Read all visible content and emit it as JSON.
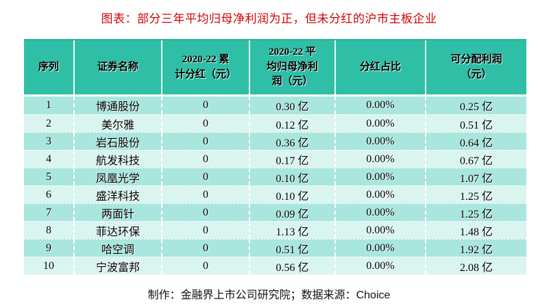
{
  "colors": {
    "title_color": "#d20000",
    "header_bg": "#2fbfa6",
    "row_odd_bg": "#a9e6dd",
    "row_even_bg": "#daf4f0",
    "text_color": "#000000",
    "grid_color": "#eafffb"
  },
  "chart_data": {
    "type": "table",
    "title": "图表：部分三年平均归母净利润为正，但未分红的沪市主板企业",
    "columns": [
      "序列",
      "证券名称",
      "2020-22 累\n计分红（元）",
      "2020-22 平\n均归母净利\n润（元）",
      "分红占比",
      "可分配利润\n（元）"
    ],
    "rows": [
      [
        "1",
        "博通股份",
        "0",
        "0.30 亿",
        "0.00%",
        "0.25 亿"
      ],
      [
        "2",
        "美尔雅",
        "0",
        "0.12 亿",
        "0.00%",
        "0.51 亿"
      ],
      [
        "3",
        "岩石股份",
        "0",
        "0.36 亿",
        "0.00%",
        "0.64 亿"
      ],
      [
        "4",
        "航发科技",
        "0",
        "0.17 亿",
        "0.00%",
        "0.67 亿"
      ],
      [
        "5",
        "凤凰光学",
        "0",
        "0.10 亿",
        "0.00%",
        "1.07 亿"
      ],
      [
        "6",
        "盛洋科技",
        "0",
        "0.10 亿",
        "0.00%",
        "1.25 亿"
      ],
      [
        "7",
        "两面针",
        "0",
        "0.09 亿",
        "0.00%",
        "1.25 亿"
      ],
      [
        "8",
        "菲达环保",
        "0",
        "1.13 亿",
        "0.00%",
        "1.48 亿"
      ],
      [
        "9",
        "哈空调",
        "0",
        "0.51 亿",
        "0.00%",
        "1.92 亿"
      ],
      [
        "10",
        "宁波富邦",
        "0",
        "0.56 亿",
        "0.00%",
        "2.08 亿"
      ]
    ],
    "source_note": "制作：金融界上市公司研究院；数据来源：Choice",
    "layout": {
      "legend": "none",
      "grid": "white dashed gridlines",
      "header_rows": 1,
      "data_rows": 10
    }
  }
}
